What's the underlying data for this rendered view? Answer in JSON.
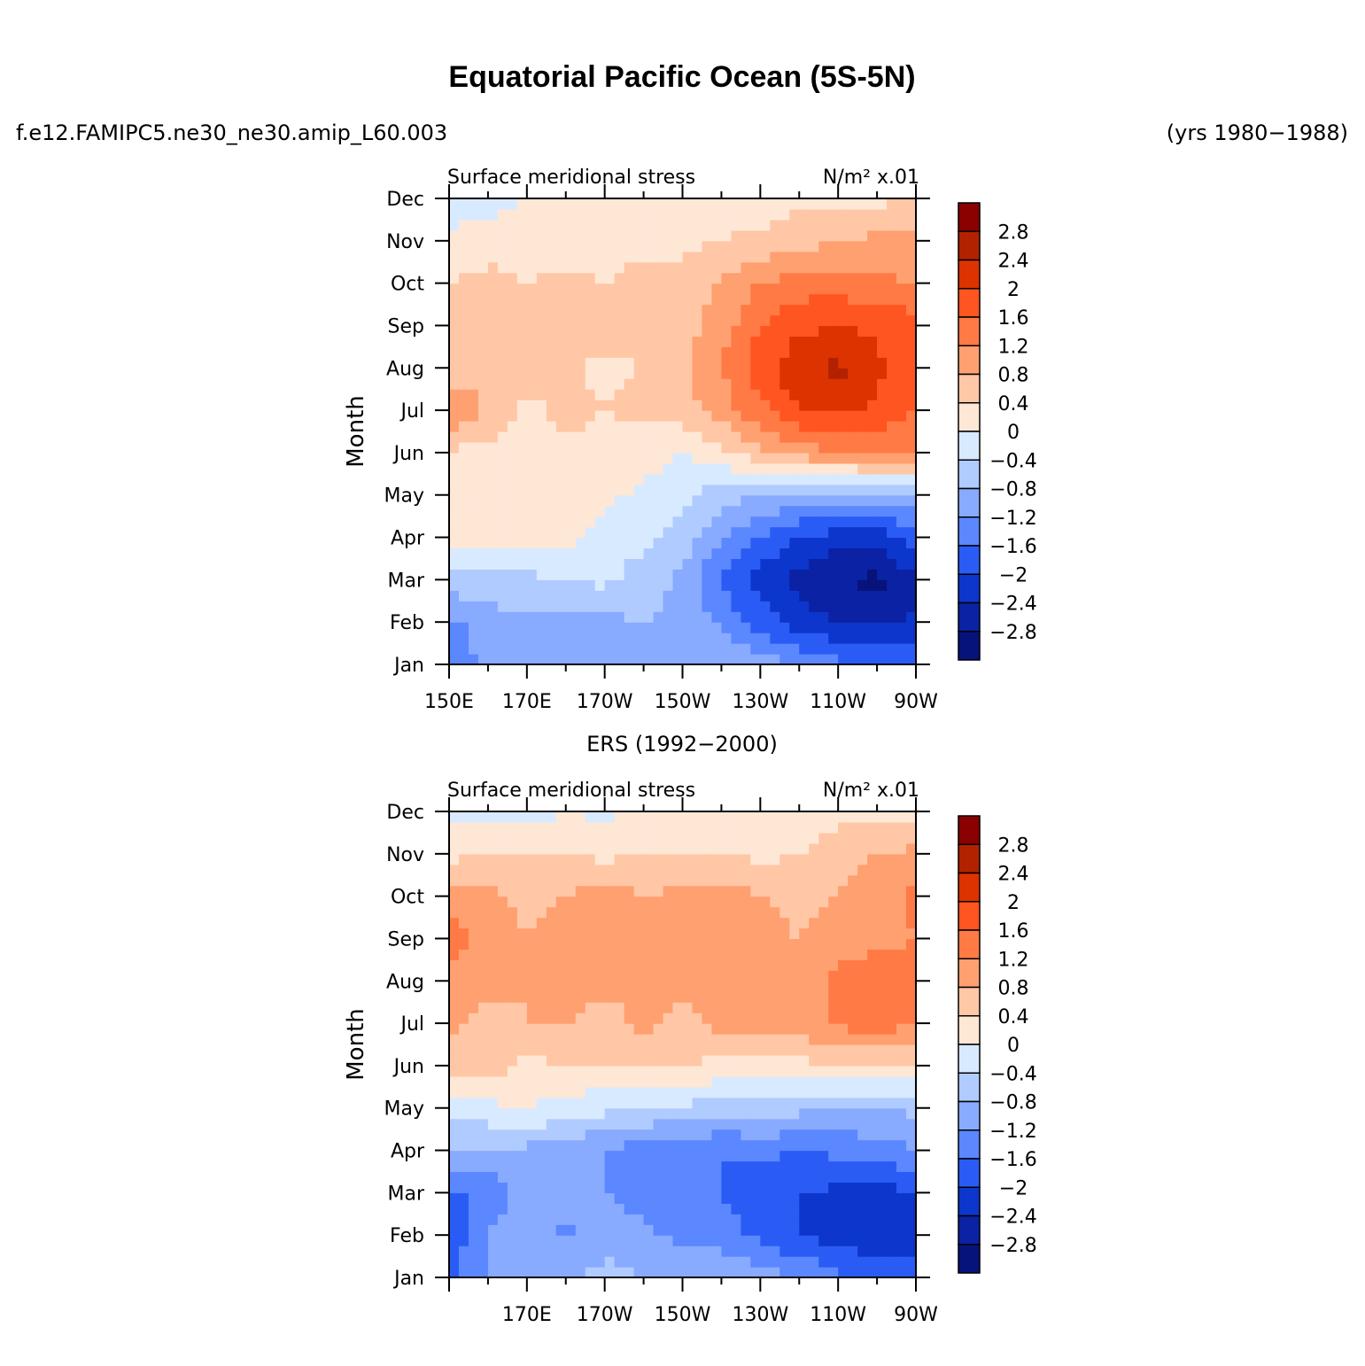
{
  "page": {
    "title": "Equatorial Pacific Ocean (5S-5N)",
    "case_name": "f.e12.FAMIPC5.ne30_ne30.amip_L60.003",
    "years_label": "(yrs 1980−1988)"
  },
  "colorbar": {
    "labels": [
      "2.8",
      "2.4",
      "2",
      "1.6",
      "1.2",
      "0.8",
      "0.4",
      "0",
      "−0.4",
      "−0.8",
      "−1.2",
      "−1.6",
      "−2",
      "−2.4",
      "−2.8"
    ],
    "colors": [
      "#8b0000",
      "#b22200",
      "#dd3300",
      "#ff5520",
      "#ff7a45",
      "#ffa070",
      "#ffc7a6",
      "#ffe7d6",
      "#d8eaff",
      "#b0cbff",
      "#88aaff",
      "#5b87ff",
      "#2a5cf5",
      "#0d36cc",
      "#0a22a3",
      "#07137a"
    ]
  },
  "chart_data": [
    {
      "type": "heatmap",
      "subtitle": "",
      "title_left": "Surface meridional stress",
      "units_label": "N/m² x.01",
      "ylabel": "Month",
      "xlabel": "",
      "x_ticks": [
        "150E",
        "170E",
        "170W",
        "150W",
        "130W",
        "110W",
        "90W"
      ],
      "y_ticks": [
        "Jan",
        "Feb",
        "Mar",
        "Apr",
        "May",
        "Jun",
        "Jul",
        "Aug",
        "Sep",
        "Oct",
        "Nov",
        "Dec"
      ],
      "xlim": [
        150,
        270
      ],
      "levels": [
        -2.8,
        -2.4,
        -2,
        -1.6,
        -1.2,
        -0.8,
        -0.4,
        0,
        0.4,
        0.8,
        1.2,
        1.6,
        2,
        2.4,
        2.8
      ],
      "x": [
        150,
        160,
        170,
        180,
        190,
        200,
        210,
        220,
        230,
        240,
        250,
        260,
        270
      ],
      "z": [
        [
          -1.5,
          -1.1,
          -1.0,
          -1.0,
          -0.9,
          -0.8,
          -0.8,
          -0.8,
          -1.0,
          -1.2,
          -1.5,
          -1.7,
          -1.8
        ],
        [
          -1.3,
          -1.0,
          -0.9,
          -0.9,
          -0.9,
          -0.8,
          -0.9,
          -1.3,
          -1.8,
          -2.2,
          -2.4,
          -2.5,
          -2.3
        ],
        [
          -0.6,
          -0.5,
          -0.5,
          -0.4,
          -0.3,
          -0.6,
          -0.9,
          -1.6,
          -2.2,
          -2.6,
          -2.8,
          -2.9,
          -2.5
        ],
        [
          0.1,
          0.2,
          0.2,
          0.1,
          -0.2,
          -0.3,
          -0.6,
          -1.2,
          -1.6,
          -2.0,
          -2.2,
          -2.2,
          -1.8
        ],
        [
          0.2,
          0.3,
          0.3,
          0.3,
          0.1,
          -0.1,
          -0.3,
          -0.6,
          -0.8,
          -0.9,
          -1.0,
          -1.0,
          -0.8
        ],
        [
          0.3,
          0.3,
          0.3,
          0.3,
          0.3,
          0.2,
          0.0,
          0.3,
          0.7,
          1.0,
          1.2,
          1.3,
          1.2
        ],
        [
          1.3,
          0.7,
          0.3,
          0.5,
          0.4,
          0.5,
          0.6,
          1.0,
          1.5,
          2.0,
          2.1,
          1.9,
          1.6
        ],
        [
          0.5,
          0.8,
          0.6,
          0.5,
          0.3,
          0.4,
          0.7,
          1.2,
          1.8,
          2.3,
          2.5,
          2.1,
          1.8
        ],
        [
          0.5,
          0.6,
          0.6,
          0.5,
          0.6,
          0.5,
          0.6,
          1.0,
          1.6,
          1.9,
          2.0,
          1.9,
          1.8
        ],
        [
          0.4,
          0.6,
          0.4,
          0.5,
          0.4,
          0.5,
          0.5,
          0.9,
          1.2,
          1.4,
          1.4,
          1.3,
          1.2
        ],
        [
          0.1,
          0.1,
          0.2,
          0.2,
          0.3,
          0.3,
          0.3,
          0.4,
          0.5,
          0.6,
          0.8,
          0.9,
          0.9
        ],
        [
          -0.2,
          -0.1,
          0.0,
          0.0,
          0.1,
          0.1,
          0.1,
          0.2,
          0.2,
          0.3,
          0.3,
          0.3,
          0.4
        ]
      ]
    },
    {
      "type": "heatmap",
      "subtitle": "ERS (1992−2000)",
      "title_left": "Surface meridional stress",
      "units_label": "N/m² x.01",
      "ylabel": "Month",
      "xlabel": "",
      "x_ticks": [
        "170E",
        "170W",
        "150W",
        "130W",
        "110W",
        "90W"
      ],
      "y_ticks": [
        "Jan",
        "Feb",
        "Mar",
        "Apr",
        "May",
        "Jun",
        "Jul",
        "Aug",
        "Sep",
        "Oct",
        "Nov",
        "Dec"
      ],
      "xlim": [
        150,
        270
      ],
      "levels": [
        -2.8,
        -2.4,
        -2,
        -1.6,
        -1.2,
        -0.8,
        -0.4,
        0,
        0.4,
        0.8,
        1.2,
        1.6,
        2,
        2.4,
        2.8
      ],
      "x": [
        150,
        160,
        170,
        180,
        190,
        200,
        210,
        220,
        230,
        240,
        250,
        260,
        270
      ],
      "z": [
        [
          -1.7,
          -1.2,
          -1.0,
          -0.8,
          -0.7,
          -0.8,
          -1.0,
          -0.8,
          -1.0,
          -1.2,
          -1.5,
          -1.7,
          -1.8
        ],
        [
          -1.9,
          -1.2,
          -0.9,
          -1.3,
          -0.9,
          -1.1,
          -1.3,
          -1.4,
          -1.7,
          -2.0,
          -2.2,
          -2.3,
          -2.2
        ],
        [
          -1.7,
          -1.5,
          -0.9,
          -1.0,
          -1.2,
          -1.4,
          -1.4,
          -1.6,
          -1.8,
          -2.0,
          -2.1,
          -2.2,
          -2.0
        ],
        [
          -0.8,
          -0.9,
          -0.9,
          -1.0,
          -1.2,
          -1.4,
          -1.5,
          -1.6,
          -1.5,
          -1.6,
          -1.5,
          -1.4,
          -1.2
        ],
        [
          -0.3,
          -0.1,
          0.0,
          -0.2,
          -0.3,
          -0.4,
          -0.5,
          -0.6,
          -0.6,
          -0.7,
          -0.8,
          -0.8,
          -0.7
        ],
        [
          0.5,
          0.6,
          0.3,
          0.4,
          0.4,
          0.5,
          0.4,
          0.3,
          0.3,
          0.3,
          0.3,
          0.3,
          0.4
        ],
        [
          0.9,
          0.7,
          0.8,
          0.8,
          0.6,
          0.9,
          0.7,
          0.9,
          0.9,
          1.0,
          1.3,
          1.4,
          1.2
        ],
        [
          1.0,
          0.9,
          0.8,
          1.0,
          0.9,
          1.0,
          0.9,
          1.0,
          0.9,
          0.9,
          1.3,
          1.5,
          1.4
        ],
        [
          1.4,
          1.0,
          0.8,
          1.0,
          1.0,
          1.1,
          1.0,
          1.0,
          0.9,
          0.8,
          1.0,
          1.1,
          1.2
        ],
        [
          1.0,
          0.9,
          0.7,
          0.8,
          1.0,
          0.8,
          0.9,
          1.0,
          0.8,
          0.7,
          0.8,
          1.0,
          1.3
        ],
        [
          0.3,
          0.4,
          0.4,
          0.4,
          0.3,
          0.4,
          0.4,
          0.4,
          0.3,
          0.4,
          0.6,
          0.8,
          0.9
        ],
        [
          -0.1,
          -0.1,
          -0.2,
          0.0,
          -0.1,
          0.1,
          0.2,
          0.2,
          0.1,
          0.2,
          0.3,
          0.3,
          0.2
        ]
      ]
    }
  ]
}
